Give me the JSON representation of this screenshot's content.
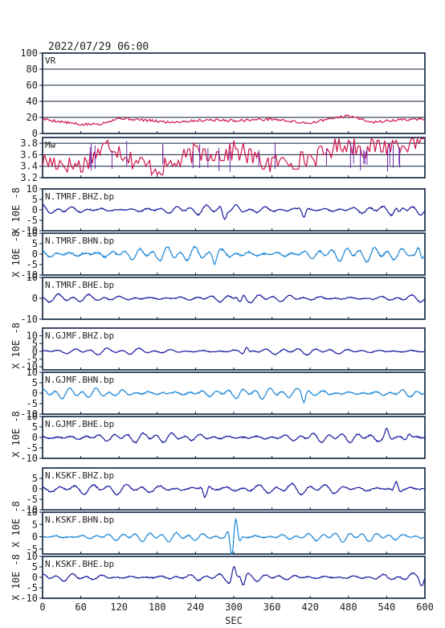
{
  "header": {
    "datetime": "2022/07/29 06:00"
  },
  "colors": {
    "frame": "#0a1e3c",
    "vr": "#d0144a",
    "mw": "#d0144a",
    "mw_vertical": "#6b28a8",
    "dark_trace": "#1a1aa0",
    "light_trace": "#1a86d8"
  },
  "chart_data": {
    "type": "line",
    "xlabel": "SEC",
    "xlim": [
      0,
      600
    ],
    "x_ticks": [
      "0",
      "60",
      "120",
      "180",
      "240",
      "300",
      "360",
      "420",
      "480",
      "540",
      "600"
    ],
    "ylabel_waveform": "X 10E -8",
    "panels": [
      {
        "id": "vr",
        "label": "VR",
        "kind": "vr",
        "ylim": [
          0,
          100
        ],
        "y_ticks": [
          "100",
          "80",
          "60",
          "40",
          "20",
          "0"
        ],
        "grid": true,
        "series_points": [
          [
            0,
            18
          ],
          [
            60,
            11
          ],
          [
            90,
            12
          ],
          [
            120,
            19
          ],
          [
            200,
            14
          ],
          [
            260,
            17
          ],
          [
            300,
            16
          ],
          [
            360,
            18
          ],
          [
            400,
            14
          ],
          [
            420,
            13
          ],
          [
            450,
            18
          ],
          [
            480,
            22
          ],
          [
            520,
            14
          ],
          [
            560,
            17
          ],
          [
            600,
            18
          ]
        ]
      },
      {
        "id": "mw",
        "label": "Mw",
        "kind": "mw",
        "ylim": [
          3.2,
          3.9
        ],
        "y_ticks": [
          "3.8",
          "3.6",
          "3.4",
          "3.2"
        ],
        "grid": true,
        "series_points": [
          [
            0,
            3.5
          ],
          [
            60,
            3.4
          ],
          [
            80,
            3.6
          ],
          [
            110,
            3.8
          ],
          [
            140,
            3.5
          ],
          [
            180,
            3.35
          ],
          [
            220,
            3.5
          ],
          [
            240,
            3.65
          ],
          [
            290,
            3.6
          ],
          [
            300,
            3.7
          ],
          [
            350,
            3.45
          ],
          [
            400,
            3.5
          ],
          [
            430,
            3.55
          ],
          [
            470,
            3.8
          ],
          [
            510,
            3.7
          ],
          [
            560,
            3.8
          ],
          [
            600,
            3.85
          ]
        ]
      },
      {
        "id": "tmrf_bhz",
        "label": "N.TMRF.BHZ.bp",
        "kind": "wave",
        "ylim": [
          -10,
          10
        ],
        "y_ticks": [
          "10",
          "5",
          "0",
          "-5",
          "-10"
        ],
        "color_key": "dark_trace",
        "amp": 2.2,
        "freq": 0.27,
        "seed": 11,
        "events": [
          [
            285,
            -3.5
          ],
          [
            410,
            -3.0
          ],
          [
            560,
            -2.5
          ]
        ]
      },
      {
        "id": "tmrf_bhn",
        "label": "N.TMRF.BHN.bp",
        "kind": "wave",
        "ylim": [
          -10,
          10
        ],
        "y_ticks": [
          "10",
          "5",
          "0",
          "-5",
          "-10"
        ],
        "color_key": "light_trace",
        "amp": 3.2,
        "freq": 0.29,
        "seed": 23,
        "events": [
          [
            270,
            -3.0
          ],
          [
            590,
            3.5
          ]
        ]
      },
      {
        "id": "tmrf_bhe",
        "label": "N.TMRF.BHE.bp",
        "kind": "wave",
        "ylim": [
          -10,
          10
        ],
        "y_ticks": [
          "10",
          "0",
          "-10"
        ],
        "color_key": "dark_trace",
        "amp": 1.8,
        "freq": 0.26,
        "seed": 37,
        "events": [
          [
            310,
            -2.5
          ]
        ]
      },
      {
        "id": "gjmf_bhz",
        "label": "N.GJMF.BHZ.bp",
        "kind": "wave",
        "ylim": [
          -12,
          15
        ],
        "y_ticks": [
          "10",
          "5",
          "0",
          "-5",
          "-10"
        ],
        "color_key": "dark_trace",
        "amp": 2.0,
        "freq": 0.25,
        "seed": 41,
        "events": [
          [
            320,
            3.0
          ]
        ]
      },
      {
        "id": "gjmf_bhn",
        "label": "N.GJMF.BHN.bp",
        "kind": "wave",
        "ylim": [
          -10,
          10
        ],
        "y_ticks": [
          "10",
          "5",
          "0",
          "-5",
          "-10"
        ],
        "color_key": "light_trace",
        "amp": 2.4,
        "freq": 0.3,
        "seed": 53,
        "events": [
          [
            410,
            -3.5
          ]
        ]
      },
      {
        "id": "gjmf_bhe",
        "label": "N.GJMF.BHE.bp",
        "kind": "wave",
        "ylim": [
          -10,
          10
        ],
        "y_ticks": [
          "10",
          "5",
          "0",
          "-5",
          "-10"
        ],
        "color_key": "dark_trace",
        "amp": 2.2,
        "freq": 0.28,
        "seed": 67,
        "events": [
          [
            540,
            3.0
          ],
          [
            575,
            2.0
          ]
        ]
      },
      {
        "id": "kskf_bhz",
        "label": "N.KSKF.BHZ.bp",
        "kind": "wave",
        "ylim": [
          -10,
          10
        ],
        "y_ticks": [
          "5",
          "0",
          "-5",
          "-10"
        ],
        "color_key": "dark_trace",
        "amp": 2.4,
        "freq": 0.24,
        "seed": 79,
        "events": [
          [
            255,
            -4.0
          ],
          [
            555,
            3.5
          ]
        ]
      },
      {
        "id": "kskf_bhn",
        "label": "N.KSKF.BHN.bp",
        "kind": "wave",
        "ylim": [
          -7,
          10
        ],
        "y_ticks": [
          "10",
          "5",
          "0",
          "-5"
        ],
        "color_key": "light_trace",
        "amp": 1.8,
        "freq": 0.3,
        "seed": 83,
        "events": [
          [
            303,
            6.0
          ],
          [
            297,
            -6.5
          ]
        ]
      },
      {
        "id": "kskf_bhe",
        "label": "N.KSKF.BHE.bp",
        "kind": "wave",
        "ylim": [
          -10,
          10
        ],
        "y_ticks": [
          "10",
          "5",
          "0",
          "-5",
          "-10"
        ],
        "color_key": "dark_trace",
        "amp": 1.8,
        "freq": 0.27,
        "seed": 97,
        "events": [
          [
            300,
            4.5
          ],
          [
            315,
            -3.5
          ],
          [
            595,
            -2.5
          ]
        ]
      }
    ]
  }
}
